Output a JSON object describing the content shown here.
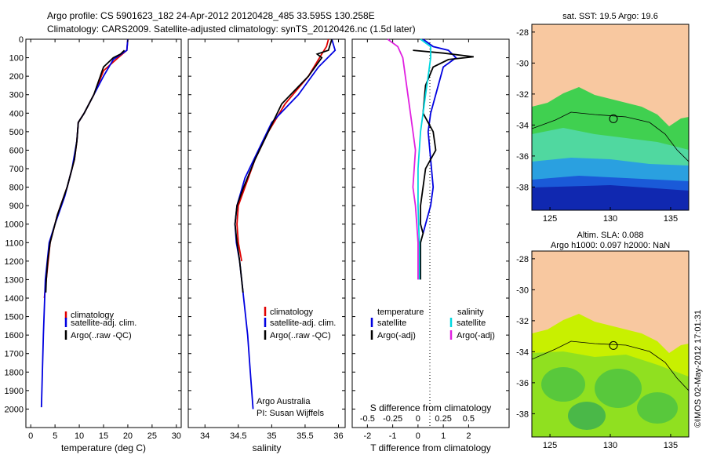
{
  "title_line1": "Argo profile: CS 5901623_182 24-Apr-2012 20120428_485 33.595S 130.258E",
  "title_line2": "Climatology: CARS2009. Satellite-adjusted climatology: synTS_20120426.nc (1.5d later)",
  "side_label": "©IMOS 02-May-2012 17:01:31",
  "colors": {
    "red": "#e00000",
    "blue": "#0000e0",
    "black": "#000000",
    "cyan": "#00d8e0",
    "magenta": "#e020e0",
    "land": "#f8c8a0"
  },
  "chart_data": [
    {
      "type": "line",
      "name": "temperature-profile",
      "xlabel": "temperature (deg C)",
      "ylabel": "",
      "xlim": [
        -1,
        31
      ],
      "ylim": [
        2100,
        0
      ],
      "xticks": [
        0,
        5,
        10,
        15,
        20,
        25,
        30
      ],
      "yticks": [
        0,
        100,
        200,
        300,
        400,
        500,
        600,
        700,
        800,
        900,
        1000,
        1100,
        1200,
        1300,
        1400,
        1500,
        1600,
        1700,
        1800,
        1900,
        2000
      ],
      "legend": {
        "placement": "lower-right",
        "entries": [
          "climatology",
          "satellite-adj. clim.",
          "Argo(..raw -QC)"
        ]
      },
      "series": [
        {
          "name": "climatology",
          "color": "red",
          "points": [
            [
              20,
              0
            ],
            [
              19.8,
              60
            ],
            [
              18,
              100
            ],
            [
              15,
              170
            ],
            [
              13,
              300
            ],
            [
              11,
              400
            ],
            [
              9.8,
              450
            ],
            [
              9.5,
              550
            ],
            [
              9,
              650
            ],
            [
              7.5,
              800
            ],
            [
              5.5,
              950
            ],
            [
              4,
              1100
            ],
            [
              3.2,
              1300
            ],
            [
              2.8,
              1400
            ]
          ]
        },
        {
          "name": "satellite-adj. clim.",
          "color": "blue",
          "points": [
            [
              20,
              0
            ],
            [
              19.8,
              60
            ],
            [
              17,
              110
            ],
            [
              15,
              200
            ],
            [
              13,
              300
            ],
            [
              11,
              400
            ],
            [
              9.8,
              450
            ],
            [
              9.5,
              550
            ],
            [
              8.5,
              700
            ],
            [
              7,
              850
            ],
            [
              5,
              1000
            ],
            [
              3.8,
              1100
            ],
            [
              3,
              1300
            ],
            [
              2.6,
              1600
            ],
            [
              2.3,
              1900
            ],
            [
              2.2,
              1990
            ]
          ]
        },
        {
          "name": "Argo(..raw -QC)",
          "color": "black",
          "points": [
            [
              19.3,
              60
            ],
            [
              18.5,
              80
            ],
            [
              17,
              100
            ],
            [
              15,
              150
            ],
            [
              13,
              300
            ],
            [
              11,
              400
            ],
            [
              9.8,
              450
            ],
            [
              9.5,
              550
            ],
            [
              9,
              650
            ],
            [
              7.5,
              800
            ],
            [
              5.5,
              950
            ],
            [
              4,
              1100
            ],
            [
              3.5,
              1200
            ],
            [
              3.2,
              1300
            ],
            [
              3.1,
              1370
            ]
          ]
        }
      ]
    },
    {
      "type": "line",
      "name": "salinity-profile",
      "xlabel": "salinity",
      "ylabel": "",
      "xlim": [
        33.75,
        36.1
      ],
      "ylim": [
        2100,
        0
      ],
      "xticks": [
        34,
        34.5,
        35,
        35.5,
        36
      ],
      "legend": {
        "placement": "lower-right",
        "entries": [
          "climatology",
          "satellite-adj. clim.",
          "Argo(..raw -QC)"
        ]
      },
      "annotation": [
        "Argo Australia",
        "PI: Susan Wijffels"
      ],
      "series": [
        {
          "name": "climatology",
          "color": "red",
          "points": [
            [
              35.85,
              0
            ],
            [
              35.82,
              40
            ],
            [
              35.75,
              80
            ],
            [
              35.55,
              200
            ],
            [
              35.2,
              350
            ],
            [
              34.95,
              500
            ],
            [
              34.75,
              650
            ],
            [
              34.6,
              800
            ],
            [
              34.5,
              900
            ],
            [
              34.48,
              1000
            ],
            [
              34.5,
              1100
            ],
            [
              34.55,
              1200
            ]
          ]
        },
        {
          "name": "satellite-adj. clim.",
          "color": "blue",
          "points": [
            [
              35.9,
              0
            ],
            [
              35.95,
              60
            ],
            [
              35.7,
              150
            ],
            [
              35.4,
              300
            ],
            [
              35.0,
              450
            ],
            [
              34.8,
              600
            ],
            [
              34.6,
              750
            ],
            [
              34.48,
              900
            ],
            [
              34.45,
              1000
            ],
            [
              34.47,
              1100
            ],
            [
              34.52,
              1200
            ],
            [
              34.58,
              1400
            ],
            [
              34.64,
              1600
            ],
            [
              34.68,
              1800
            ],
            [
              34.72,
              2000
            ]
          ]
        },
        {
          "name": "Argo(..raw -QC)",
          "color": "black",
          "points": [
            [
              35.9,
              0
            ],
            [
              35.85,
              60
            ],
            [
              35.68,
              80
            ],
            [
              35.75,
              100
            ],
            [
              35.55,
              200
            ],
            [
              35.15,
              350
            ],
            [
              34.95,
              500
            ],
            [
              34.75,
              650
            ],
            [
              34.58,
              800
            ],
            [
              34.48,
              900
            ],
            [
              34.45,
              1000
            ],
            [
              34.48,
              1100
            ],
            [
              34.52,
              1200
            ],
            [
              34.57,
              1370
            ]
          ]
        }
      ]
    },
    {
      "type": "line",
      "name": "difference-profile",
      "xlabel": "T difference from climatology",
      "xlabel_top": "S difference from climatology",
      "xlim": [
        -2.6,
        3.6
      ],
      "ylim": [
        2100,
        0
      ],
      "xticks": [
        -2,
        -1,
        0,
        1,
        2
      ],
      "s_ticks": [
        -0.5,
        -0.25,
        0,
        0.25,
        0.5
      ],
      "legend": {
        "placement": "lower-center",
        "temperature_header": "temperature",
        "salinity_header": "salinity",
        "entries": [
          "satellite",
          "Argo(-adj)",
          "satellite",
          "Argo(-adj)"
        ]
      },
      "series": [
        {
          "name": "temperature satellite",
          "color": "blue",
          "points": [
            [
              0.2,
              0
            ],
            [
              0.6,
              40
            ],
            [
              1.2,
              60
            ],
            [
              1.5,
              100
            ],
            [
              1.0,
              150
            ],
            [
              0.8,
              250
            ],
            [
              0.5,
              400
            ],
            [
              0.4,
              500
            ],
            [
              0.5,
              650
            ],
            [
              0.6,
              800
            ],
            [
              0.5,
              900
            ],
            [
              0.3,
              1000
            ],
            [
              0.2,
              1050
            ]
          ]
        },
        {
          "name": "temperature Argo(-adj)",
          "color": "black",
          "points": [
            [
              -0.2,
              60
            ],
            [
              1.0,
              75
            ],
            [
              2.2,
              95
            ],
            [
              1.2,
              110
            ],
            [
              0.6,
              150
            ],
            [
              0.3,
              250
            ],
            [
              0.2,
              400
            ],
            [
              0.6,
              500
            ],
            [
              0.7,
              600
            ],
            [
              0.3,
              700
            ],
            [
              0.2,
              800
            ],
            [
              0.1,
              900
            ],
            [
              0.1,
              1000
            ],
            [
              0.2,
              1050
            ],
            [
              0.1,
              1100
            ],
            [
              0.1,
              1300
            ]
          ]
        },
        {
          "name": "salinity satellite",
          "color": "cyan",
          "points": [
            [
              0.1,
              0
            ],
            [
              0.5,
              40
            ],
            [
              0.5,
              100
            ],
            [
              0.4,
              200
            ],
            [
              0.3,
              300
            ],
            [
              0.1,
              500
            ],
            [
              0,
              700
            ],
            [
              0,
              900
            ],
            [
              0.05,
              1100
            ],
            [
              0.05,
              1300
            ]
          ]
        },
        {
          "name": "salinity Argo(-adj)",
          "color": "magenta",
          "points": [
            [
              -1.2,
              0
            ],
            [
              -0.8,
              40
            ],
            [
              -0.6,
              100
            ],
            [
              -0.5,
              200
            ],
            [
              -0.3,
              400
            ],
            [
              -0.1,
              600
            ],
            [
              -0.2,
              800
            ],
            [
              -0.1,
              900
            ],
            [
              -0.05,
              1000
            ],
            [
              0,
              1100
            ],
            [
              0,
              1300
            ]
          ]
        }
      ]
    },
    {
      "type": "heatmap",
      "name": "sst-map",
      "title": "sat. SST: 19.5  Argo: 19.6",
      "xlim": [
        123.5,
        136.5
      ],
      "ylim": [
        -39.5,
        -27.5
      ],
      "xticks": [
        125,
        130,
        135
      ],
      "yticks": [
        -28,
        -30,
        -32,
        -34,
        -36,
        -38
      ],
      "argo_marker": [
        130.258,
        -33.595
      ]
    },
    {
      "type": "heatmap",
      "name": "sla-map",
      "title_line1": "Altim. SLA: 0.088",
      "title_line2": "Argo h1000: 0.097 h2000: NaN",
      "xlim": [
        123.5,
        136.5
      ],
      "ylim": [
        -39.5,
        -27.5
      ],
      "xticks": [
        125,
        130,
        135
      ],
      "yticks": [
        -28,
        -30,
        -32,
        -34,
        -36,
        -38
      ],
      "argo_marker": [
        130.258,
        -33.595
      ]
    }
  ]
}
